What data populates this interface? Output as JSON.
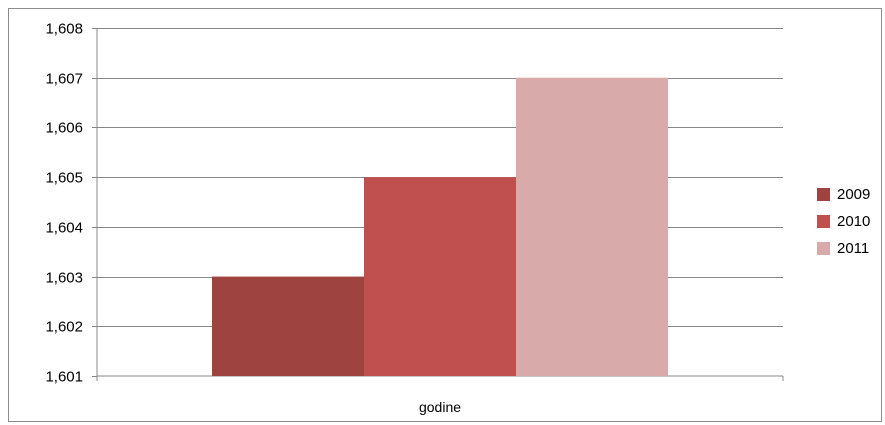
{
  "chart_data": {
    "type": "bar",
    "categories": [
      "godine"
    ],
    "series": [
      {
        "name": "2009",
        "values": [
          1.603
        ],
        "color": "#9E4340"
      },
      {
        "name": "2010",
        "values": [
          1.605
        ],
        "color": "#C0504F"
      },
      {
        "name": "2011",
        "values": [
          1.607
        ],
        "color": "#D9AAAA"
      }
    ],
    "ylim": [
      1.601,
      1.608
    ],
    "yticks": [
      "1,601",
      "1,602",
      "1,603",
      "1,604",
      "1,605",
      "1,606",
      "1,607",
      "1,608"
    ],
    "xlabel": "godine",
    "grid": true,
    "legend_position": "right"
  }
}
